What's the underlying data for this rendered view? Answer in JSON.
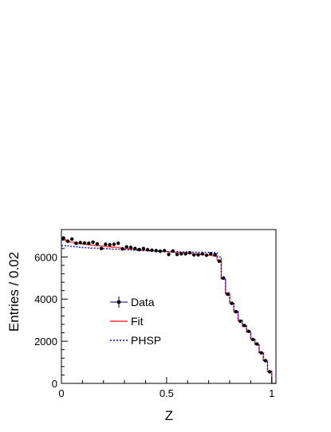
{
  "chart_data": {
    "type": "line",
    "title": "",
    "xlabel": "Z",
    "ylabel": "Entries / 0.02",
    "xlim": [
      0,
      1.02
    ],
    "ylim": [
      0,
      7300
    ],
    "x_ticks": [
      0,
      0.5,
      1
    ],
    "x_tick_labels": [
      "0",
      "0.5",
      "1"
    ],
    "y_ticks": [
      0,
      2000,
      4000,
      6000
    ],
    "y_tick_labels": [
      "0",
      "2000",
      "4000",
      "6000"
    ],
    "grid": false,
    "legend_position": "center-left",
    "legend": [
      {
        "label": "Data",
        "style": "points",
        "color": "#000000"
      },
      {
        "label": "Fit",
        "style": "solid",
        "color": "#ff3333"
      },
      {
        "label": "PHSP",
        "style": "dotted",
        "color": "#0000cc"
      }
    ],
    "x": [
      0.01,
      0.03,
      0.05,
      0.07,
      0.09,
      0.11,
      0.13,
      0.15,
      0.17,
      0.19,
      0.21,
      0.23,
      0.25,
      0.27,
      0.29,
      0.31,
      0.33,
      0.35,
      0.37,
      0.39,
      0.41,
      0.43,
      0.45,
      0.47,
      0.49,
      0.51,
      0.53,
      0.55,
      0.57,
      0.59,
      0.61,
      0.63,
      0.65,
      0.67,
      0.69,
      0.71,
      0.73,
      0.75,
      0.77,
      0.79,
      0.81,
      0.83,
      0.85,
      0.87,
      0.89,
      0.91,
      0.93,
      0.95,
      0.97,
      0.99,
      1.01
    ],
    "series": [
      {
        "name": "Data",
        "values": [
          6900,
          6750,
          6850,
          6650,
          6680,
          6660,
          6650,
          6700,
          6620,
          6400,
          6600,
          6580,
          6600,
          6650,
          6380,
          6480,
          6450,
          6400,
          6350,
          6400,
          6340,
          6320,
          6300,
          6270,
          6300,
          6120,
          6280,
          6120,
          6150,
          6150,
          6200,
          6100,
          6100,
          6150,
          6080,
          6150,
          6100,
          5800,
          5000,
          4230,
          3800,
          3400,
          2950,
          2750,
          2470,
          2080,
          1870,
          1450,
          1080,
          550,
          0
        ]
      },
      {
        "name": "Fit",
        "values": [
          6820,
          6750,
          6700,
          6660,
          6630,
          6600,
          6580,
          6560,
          6540,
          6520,
          6500,
          6480,
          6460,
          6440,
          6420,
          6400,
          6380,
          6360,
          6340,
          6320,
          6310,
          6300,
          6290,
          6270,
          6260,
          6240,
          6230,
          6210,
          6200,
          6190,
          6170,
          6150,
          6130,
          6110,
          6090,
          6070,
          6050,
          5850,
          4950,
          4250,
          3800,
          3380,
          2970,
          2700,
          2430,
          2080,
          1840,
          1460,
          1080,
          560,
          0
        ]
      },
      {
        "name": "PHSP",
        "values": [
          6540,
          6520,
          6500,
          6480,
          6460,
          6440,
          6430,
          6420,
          6410,
          6400,
          6390,
          6380,
          6370,
          6360,
          6350,
          6340,
          6330,
          6320,
          6310,
          6300,
          6300,
          6290,
          6280,
          6270,
          6260,
          6260,
          6250,
          6250,
          6240,
          6240,
          6230,
          6230,
          6220,
          6220,
          6220,
          6210,
          6200,
          6000,
          5000,
          4300,
          3850,
          3420,
          3000,
          2730,
          2450,
          2100,
          1850,
          1470,
          1090,
          570,
          0
        ]
      }
    ]
  }
}
